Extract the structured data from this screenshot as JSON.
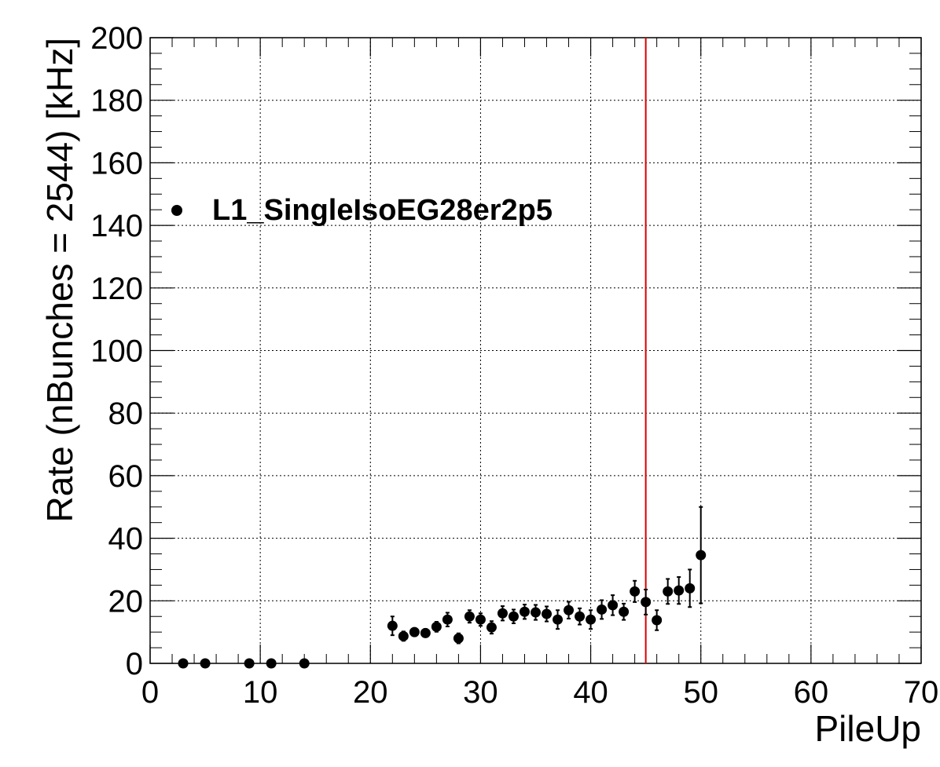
{
  "chart_data": {
    "type": "scatter",
    "xlabel": "PileUp",
    "ylabel": "Rate (nBunches = 2544) [kHz]",
    "xlim": [
      0,
      70
    ],
    "ylim": [
      0,
      200
    ],
    "x_ticks": [
      0,
      10,
      20,
      30,
      40,
      50,
      60,
      70
    ],
    "y_ticks": [
      0,
      20,
      40,
      60,
      80,
      100,
      120,
      140,
      160,
      180,
      200
    ],
    "grid": true,
    "legend_placement": "top-left",
    "reference_line": {
      "x": 45,
      "color": "#dd0000"
    },
    "series": [
      {
        "name": "L1_SingleIsoEG28er2p5",
        "color": "#000000",
        "x": [
          3,
          5,
          9,
          11,
          14,
          22,
          23,
          24,
          25,
          26,
          27,
          28,
          29,
          30,
          31,
          32,
          33,
          34,
          35,
          36,
          37,
          38,
          39,
          40,
          41,
          42,
          43,
          44,
          45,
          46,
          47,
          48,
          49,
          50
        ],
        "y": [
          0,
          0,
          0,
          0,
          0,
          12,
          8.7,
          10,
          9.7,
          11.7,
          14,
          8,
          15,
          14,
          11.5,
          16,
          15,
          16.5,
          16.3,
          15.8,
          14,
          17,
          15,
          14,
          17.2,
          18.6,
          16.5,
          23,
          19.6,
          13.8,
          23,
          23.3,
          24,
          34.6
        ],
        "y_error": [
          0,
          0,
          0,
          0,
          0,
          3,
          1.5,
          1.3,
          1.3,
          1.6,
          2.2,
          1.6,
          2,
          2,
          2,
          2.3,
          2.2,
          2.3,
          2.4,
          2.4,
          3,
          2.7,
          2.6,
          3,
          3,
          3.2,
          2.6,
          3.4,
          4,
          3.2,
          4,
          4.3,
          6,
          15.4
        ]
      }
    ]
  }
}
